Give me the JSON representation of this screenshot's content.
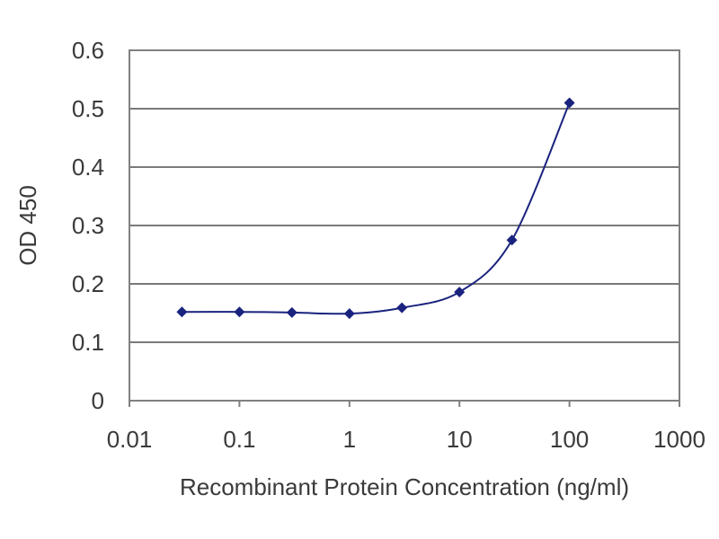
{
  "chart_data": {
    "type": "scatter",
    "title": "",
    "xlabel": "Recombinant Protein Concentration (ng/ml)",
    "ylabel": "OD 450",
    "xscale": "log",
    "xlim": [
      0.01,
      1000
    ],
    "ylim": [
      0,
      0.6
    ],
    "xticks": [
      0.01,
      0.1,
      1,
      10,
      100,
      1000
    ],
    "xtick_labels": [
      "0.01",
      "0.1",
      "1",
      "10",
      "100",
      "1000"
    ],
    "yticks": [
      0,
      0.1,
      0.2,
      0.3,
      0.4,
      0.5,
      0.6
    ],
    "ytick_labels": [
      "0",
      "0.1",
      "0.2",
      "0.3",
      "0.4",
      "0.5",
      "0.6"
    ],
    "grid": "horizontal",
    "legend": "none",
    "series": [
      {
        "marker": "diamond",
        "line": "smooth",
        "color": "#1a237e",
        "x": [
          0.03,
          0.1,
          0.3,
          1,
          3,
          10,
          30,
          100
        ],
        "y": [
          0.152,
          0.152,
          0.151,
          0.149,
          0.159,
          0.186,
          0.275,
          0.51
        ]
      }
    ]
  }
}
